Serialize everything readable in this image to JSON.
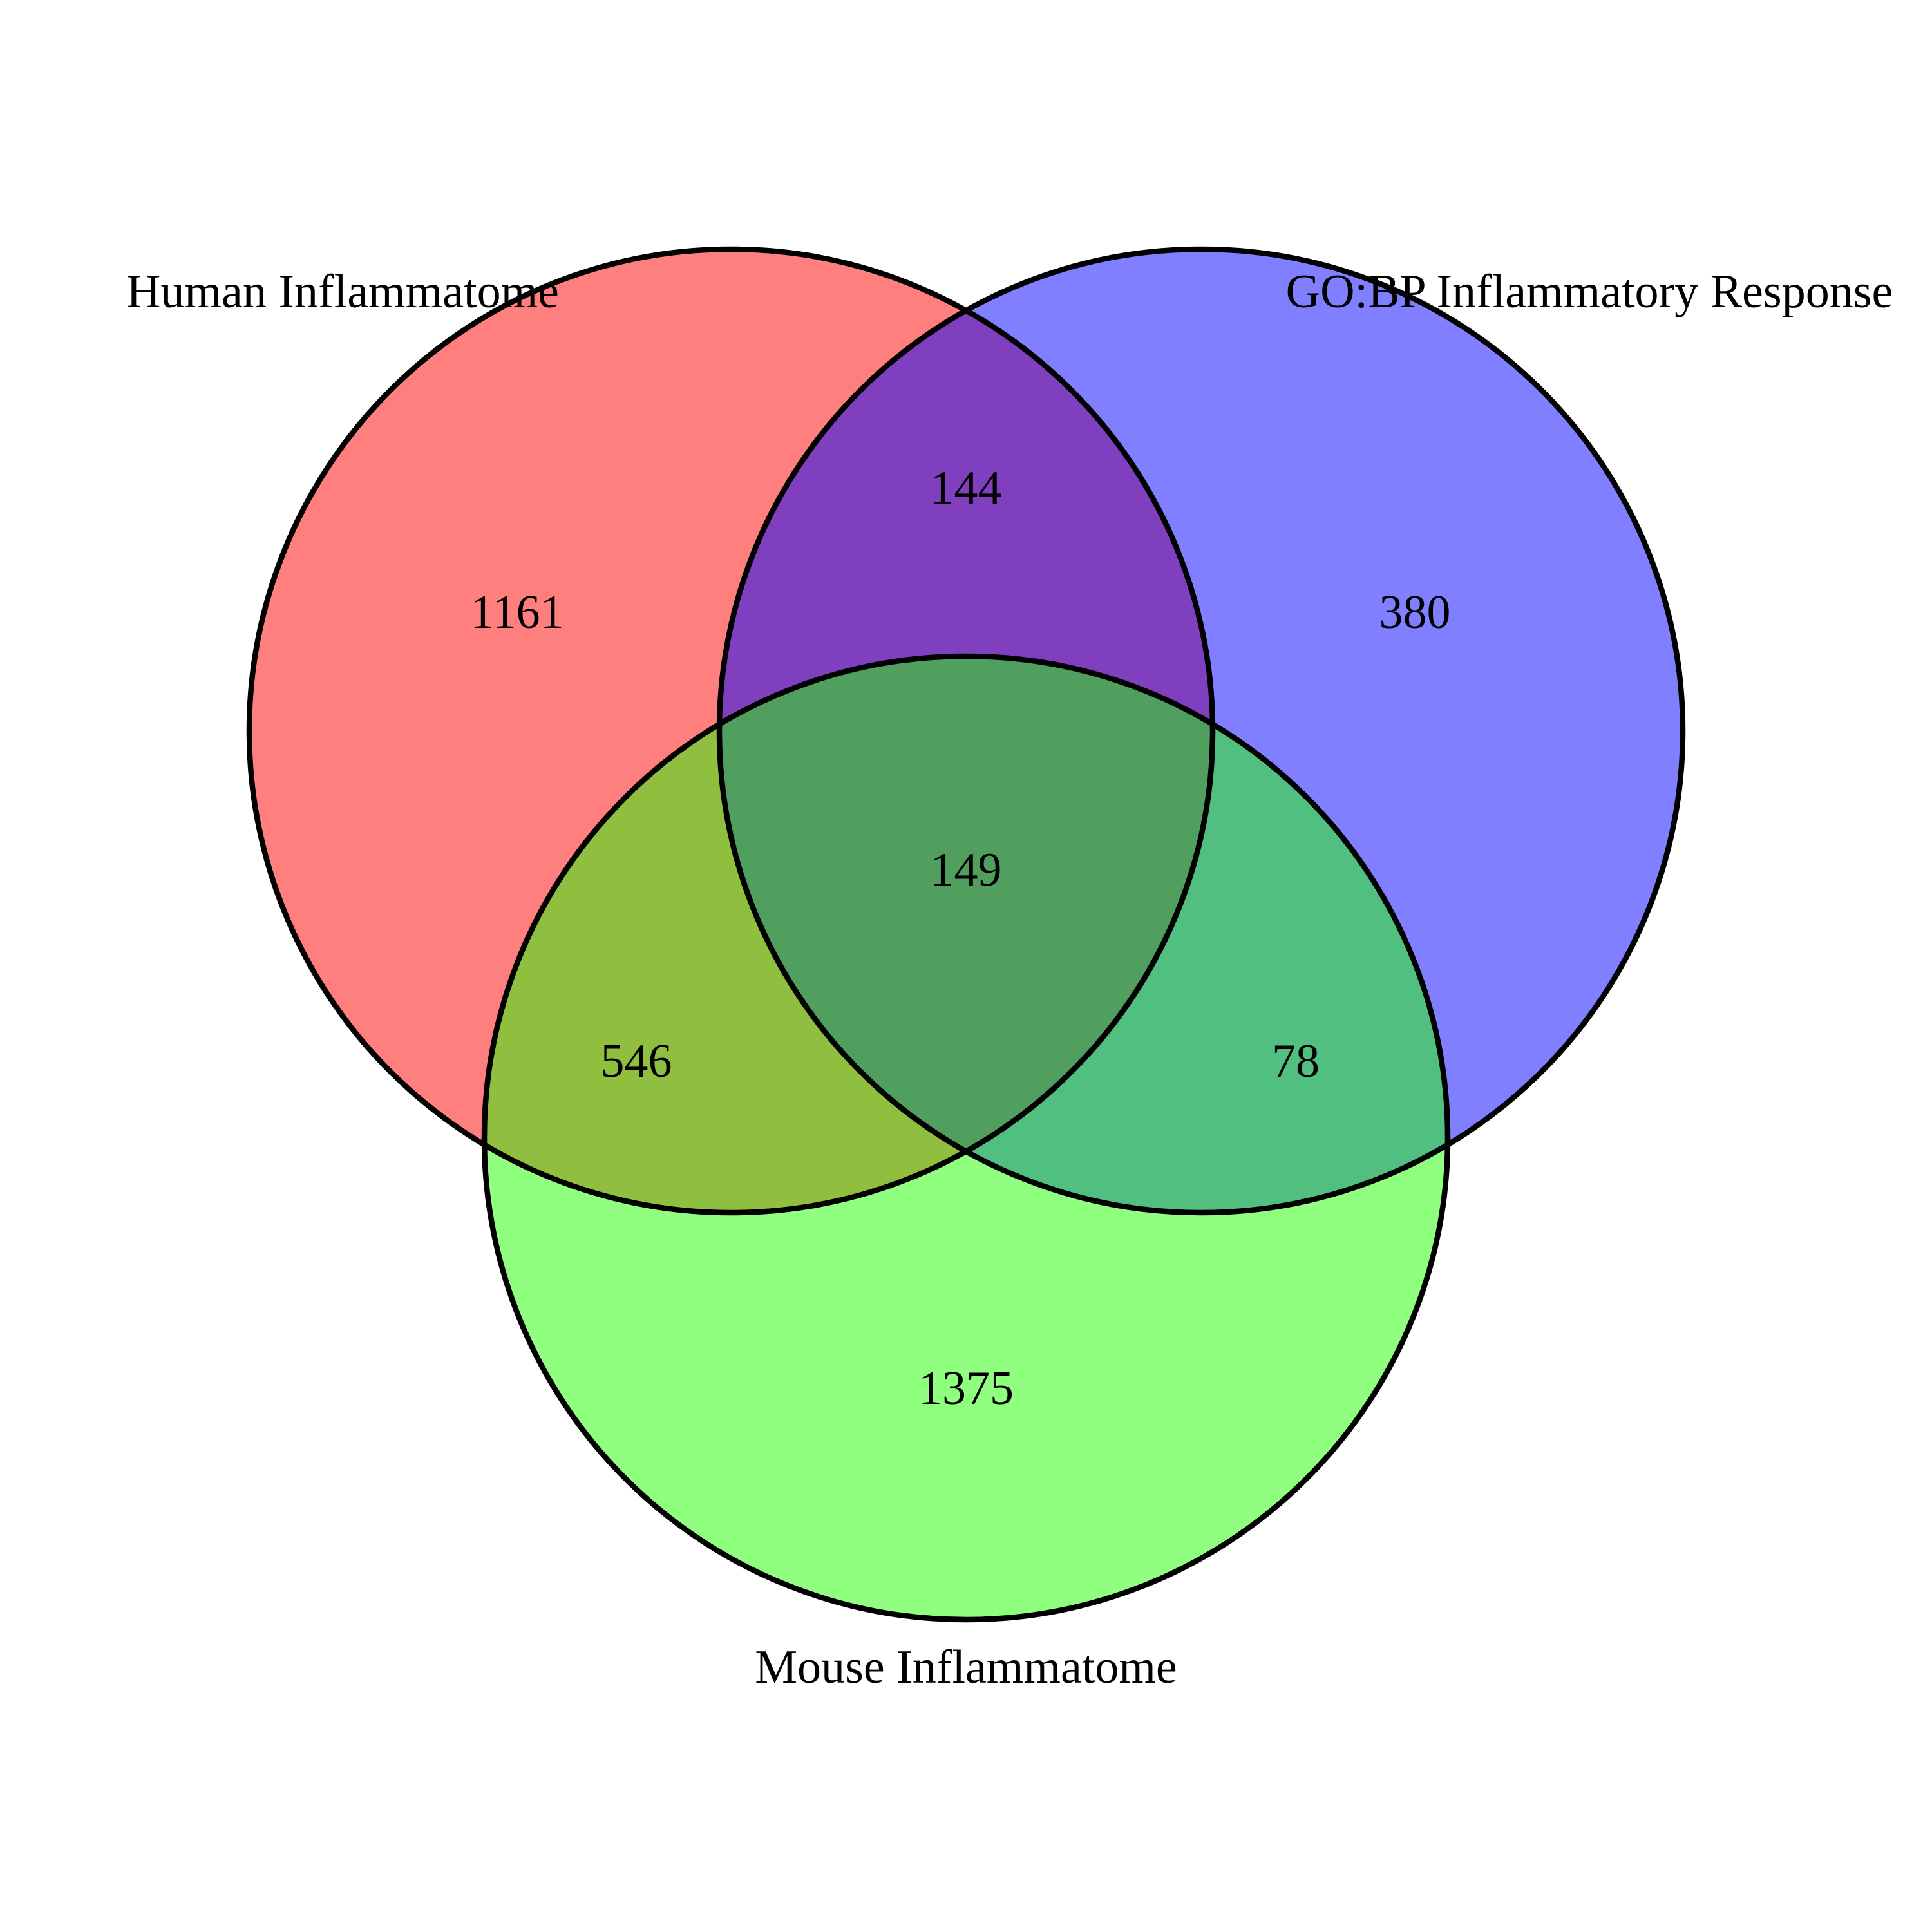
{
  "diagram": {
    "type": "venn3",
    "sets": [
      {
        "id": "A",
        "name": "Human Inflammatome",
        "color": "#ff0000"
      },
      {
        "id": "B",
        "name": "GO:BP Inflammatory Response",
        "color": "#0000ff"
      },
      {
        "id": "C",
        "name": "Mouse Inflammatome",
        "color": "#22ff00"
      }
    ],
    "regions": {
      "A_only": "1161",
      "B_only": "380",
      "C_only": "1375",
      "AB_only": "144",
      "AC_only": "546",
      "BC_only": "78",
      "ABC": "149"
    }
  }
}
